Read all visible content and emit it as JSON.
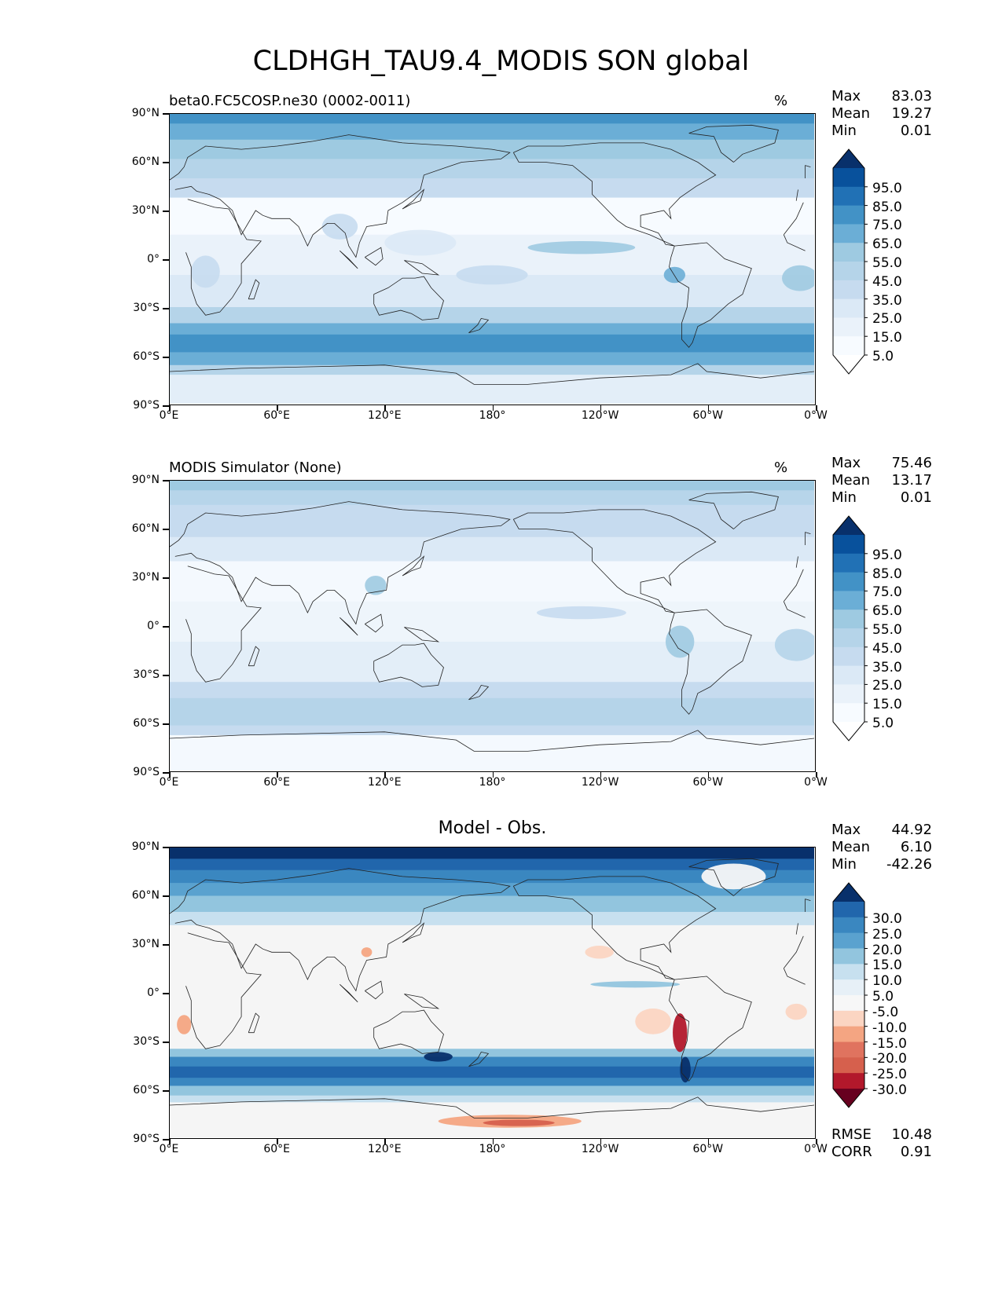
{
  "figure": {
    "title": "CLDHGH_TAU9.4_MODIS SON global"
  },
  "axes": {
    "yticks": [
      "90°N",
      "60°N",
      "30°N",
      "0°",
      "30°S",
      "60°S",
      "90°S"
    ],
    "xticks": [
      "0°E",
      "60°E",
      "120°E",
      "180°",
      "120°W",
      "60°W",
      "0°W"
    ]
  },
  "panels": [
    {
      "title_left": "beta0.FC5COSP.ne30 (0002-0011)",
      "title_center": "",
      "units": "%",
      "stats": {
        "max_label": "Max",
        "max": "83.03",
        "mean_label": "Mean",
        "mean": "19.27",
        "min_label": "Min",
        "min": "0.01"
      },
      "colorbar": {
        "labels": [
          "95.0",
          "85.0",
          "75.0",
          "65.0",
          "55.0",
          "45.0",
          "35.0",
          "25.0",
          "15.0",
          "5.0"
        ],
        "colors": [
          "#08306b",
          "#08519c",
          "#2171b5",
          "#4292c6",
          "#6baed6",
          "#9ecae1",
          "#b5d4e9",
          "#c6dbef",
          "#dbe9f6",
          "#eaf2fa",
          "#f7fbff",
          "#ffffff"
        ]
      },
      "palette": "blues"
    },
    {
      "title_left": "MODIS Simulator (None)",
      "title_center": "",
      "units": "%",
      "stats": {
        "max_label": "Max",
        "max": "75.46",
        "mean_label": "Mean",
        "mean": "13.17",
        "min_label": "Min",
        "min": "0.01"
      },
      "colorbar": {
        "labels": [
          "95.0",
          "85.0",
          "75.0",
          "65.0",
          "55.0",
          "45.0",
          "35.0",
          "25.0",
          "15.0",
          "5.0"
        ],
        "colors": [
          "#08306b",
          "#08519c",
          "#2171b5",
          "#4292c6",
          "#6baed6",
          "#9ecae1",
          "#b5d4e9",
          "#c6dbef",
          "#dbe9f6",
          "#eaf2fa",
          "#f7fbff",
          "#ffffff"
        ]
      },
      "palette": "blues-light"
    },
    {
      "title_left": "",
      "title_center": "Model - Obs.",
      "units": "",
      "stats": {
        "max_label": "Max",
        "max": "44.92",
        "mean_label": "Mean",
        "mean": "6.10",
        "min_label": "Min",
        "min": "-42.26"
      },
      "colorbar": {
        "labels": [
          "30.0",
          "25.0",
          "20.0",
          "15.0",
          "10.0",
          "5.0",
          "-5.0",
          "-10.0",
          "-15.0",
          "-20.0",
          "-25.0",
          "-30.0"
        ],
        "colors": [
          "#08306b",
          "#2166ac",
          "#3a87c0",
          "#5aa2cf",
          "#92c5de",
          "#c7e0ef",
          "#e7f0f7",
          "#f7f7f7",
          "#fbd5c2",
          "#f4a582",
          "#e0735f",
          "#d6604d",
          "#b2182b",
          "#67001f"
        ]
      },
      "bottom_stats": {
        "rmse_label": "RMSE",
        "rmse": "10.48",
        "corr_label": "CORR",
        "corr": "0.91"
      },
      "palette": "diff"
    }
  ]
}
